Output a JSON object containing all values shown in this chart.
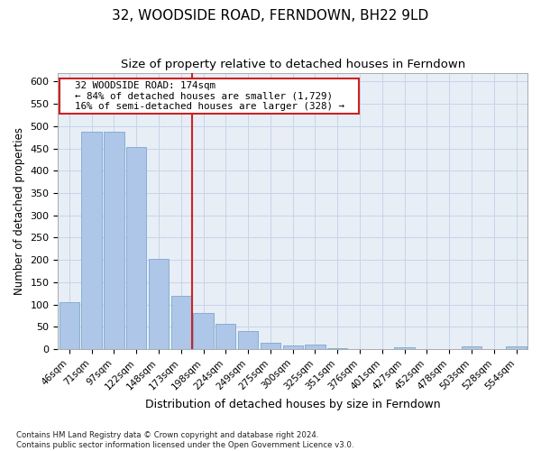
{
  "title": "32, WOODSIDE ROAD, FERNDOWN, BH22 9LD",
  "subtitle": "Size of property relative to detached houses in Ferndown",
  "xlabel": "Distribution of detached houses by size in Ferndown",
  "ylabel": "Number of detached properties",
  "categories": [
    "46sqm",
    "71sqm",
    "97sqm",
    "122sqm",
    "148sqm",
    "173sqm",
    "198sqm",
    "224sqm",
    "249sqm",
    "275sqm",
    "300sqm",
    "325sqm",
    "351sqm",
    "376sqm",
    "401sqm",
    "427sqm",
    "452sqm",
    "478sqm",
    "503sqm",
    "528sqm",
    "554sqm"
  ],
  "values": [
    105,
    488,
    487,
    453,
    202,
    120,
    82,
    57,
    40,
    14,
    9,
    11,
    3,
    1,
    1,
    5,
    0,
    0,
    6,
    0,
    6
  ],
  "bar_color": "#aec6e8",
  "bar_edge_color": "#7aa8d0",
  "grid_color": "#c8d4e8",
  "background_color": "#e8eef6",
  "vline_x": 5.5,
  "vline_color": "#cc2222",
  "annotation_text": "  32 WOODSIDE ROAD: 174sqm  \n  ← 84% of detached houses are smaller (1,729)  \n  16% of semi-detached houses are larger (328) →  ",
  "annotation_box_color": "#ffffff",
  "annotation_box_edge": "#cc2222",
  "footer": "Contains HM Land Registry data © Crown copyright and database right 2024.\nContains public sector information licensed under the Open Government Licence v3.0.",
  "ylim": [
    0,
    620
  ],
  "yticks": [
    0,
    50,
    100,
    150,
    200,
    250,
    300,
    350,
    400,
    450,
    500,
    550,
    600
  ],
  "title_fontsize": 11,
  "subtitle_fontsize": 9.5,
  "tick_fontsize": 7.5,
  "ylabel_fontsize": 8.5,
  "xlabel_fontsize": 9,
  "footer_fontsize": 6.2,
  "annot_fontsize": 7.8
}
